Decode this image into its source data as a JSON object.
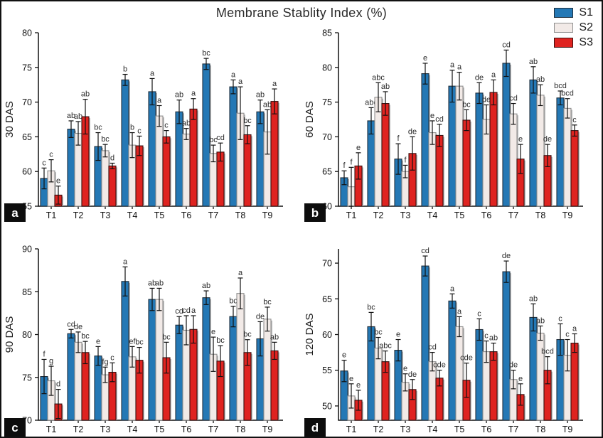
{
  "title": "Membrane Stablity Index (%)",
  "legend": {
    "position": "top-right",
    "entries": [
      {
        "label": "S1",
        "color": "#2478b5",
        "border": "#1f2f3d"
      },
      {
        "label": "S2",
        "color": "#f2eae7",
        "border": "#8f8f8f"
      },
      {
        "label": "S3",
        "color": "#df2320",
        "border": "#3a1110"
      }
    ]
  },
  "style_colors": {
    "axis": "#111111",
    "error_bar": "#111111",
    "letter_text": "#2b2b2b",
    "tick_label": "#111111"
  },
  "chart_data": [
    {
      "id": "a",
      "type": "bar",
      "panel_label": "a",
      "ylabel": "30 DAS",
      "xlabel": "",
      "ylim": [
        55,
        80
      ],
      "yticks": [
        55,
        60,
        65,
        70,
        75,
        80
      ],
      "grid": false,
      "categories": [
        "T1",
        "T2",
        "T3",
        "T4",
        "T5",
        "T6",
        "T7",
        "T8",
        "T9"
      ],
      "series": [
        {
          "name": "S1",
          "values": [
            59.0,
            66.1,
            63.6,
            73.2,
            71.5,
            68.6,
            75.5,
            72.2,
            68.6
          ],
          "errors": [
            1.5,
            1.2,
            2.0,
            0.8,
            1.9,
            1.7,
            0.8,
            1.0,
            1.7
          ],
          "letters": [
            "c",
            "ab",
            "bc",
            "b",
            "a",
            "ab",
            "bc",
            "a",
            "ab"
          ]
        },
        {
          "name": "S2",
          "values": [
            60.1,
            65.5,
            63.0,
            63.8,
            68.0,
            65.4,
            62.6,
            68.4,
            65.7
          ],
          "errors": [
            1.6,
            1.7,
            0.9,
            1.8,
            1.5,
            0.8,
            1.2,
            3.8,
            3.2
          ],
          "letters": [
            "c",
            "ab",
            "bc",
            "b",
            "a",
            "ab",
            "bc",
            "a",
            "ab"
          ]
        },
        {
          "name": "S3",
          "values": [
            56.6,
            67.9,
            60.8,
            63.7,
            65.0,
            69.0,
            62.8,
            65.3,
            70.1
          ],
          "errors": [
            1.3,
            2.5,
            0.4,
            1.4,
            0.9,
            1.5,
            1.3,
            1.3,
            1.8
          ],
          "letters": [
            "e",
            "ab",
            "d",
            "c",
            "c",
            "a",
            "cd",
            "bc",
            "a"
          ]
        }
      ]
    },
    {
      "id": "b",
      "type": "bar",
      "panel_label": "b",
      "ylabel": "60 DAS",
      "xlabel": "",
      "ylim": [
        60,
        85
      ],
      "yticks": [
        60,
        65,
        70,
        75,
        80,
        85
      ],
      "grid": false,
      "categories": [
        "T1",
        "T2",
        "T3",
        "T4",
        "T5",
        "T6",
        "T7",
        "T8",
        "T9"
      ],
      "series": [
        {
          "name": "S1",
          "values": [
            64.1,
            72.3,
            66.8,
            79.1,
            77.3,
            76.3,
            80.6,
            78.2,
            75.6
          ],
          "errors": [
            1.0,
            1.9,
            2.2,
            1.5,
            2.3,
            1.5,
            1.9,
            1.9,
            1.0
          ],
          "letters": [
            "f",
            "abc",
            "f",
            "e",
            "a",
            "de",
            "cd",
            "ab",
            "bcd"
          ]
        },
        {
          "name": "S2",
          "values": [
            62.8,
            75.7,
            65.0,
            70.6,
            77.3,
            72.5,
            73.3,
            76.0,
            74.1
          ],
          "errors": [
            2.8,
            2.1,
            0.9,
            1.7,
            2.0,
            2.1,
            1.5,
            1.5,
            1.4
          ],
          "letters": [
            "f",
            "abc",
            "f",
            "e",
            "a",
            "de",
            "cd",
            "ab",
            "bcd"
          ]
        },
        {
          "name": "S3",
          "values": [
            65.8,
            74.8,
            67.6,
            70.2,
            72.4,
            76.4,
            66.8,
            67.3,
            70.9
          ],
          "errors": [
            1.9,
            1.7,
            2.4,
            1.6,
            1.5,
            1.8,
            2.1,
            1.6,
            0.8
          ],
          "letters": [
            "e",
            "ab",
            "de",
            "cd",
            "bc",
            "a",
            "e",
            "de",
            "c"
          ]
        }
      ]
    },
    {
      "id": "c",
      "type": "bar",
      "panel_label": "c",
      "ylabel": "90 DAS",
      "xlabel": "",
      "ylim": [
        70,
        90
      ],
      "yticks": [
        70,
        75,
        80,
        85,
        90
      ],
      "grid": false,
      "categories": [
        "T1",
        "T2",
        "T3",
        "T4",
        "T5",
        "T6",
        "T7",
        "T8",
        "T9"
      ],
      "series": [
        {
          "name": "S1",
          "values": [
            75.1,
            80.1,
            77.5,
            86.2,
            84.1,
            81.1,
            84.3,
            82.1,
            79.5
          ],
          "errors": [
            2.0,
            0.5,
            1.1,
            1.7,
            1.3,
            1.0,
            0.8,
            1.2,
            2.0
          ],
          "letters": [
            "f",
            "cd",
            "e",
            "a",
            "ab",
            "cd",
            "ab",
            "bc",
            "de"
          ]
        },
        {
          "name": "S2",
          "values": [
            74.6,
            79.1,
            75.3,
            77.4,
            84.1,
            80.5,
            77.7,
            84.8,
            81.8
          ],
          "errors": [
            1.7,
            1.2,
            0.9,
            1.2,
            1.3,
            1.7,
            2.0,
            1.8,
            1.4
          ],
          "letters": [
            "g",
            "de",
            "fg",
            "ef",
            "ab",
            "cd",
            "e",
            "a",
            "bc"
          ]
        },
        {
          "name": "S3",
          "values": [
            71.9,
            77.9,
            75.6,
            77.0,
            77.3,
            80.6,
            76.9,
            77.9,
            78.1
          ],
          "errors": [
            1.7,
            1.3,
            1.1,
            1.5,
            1.8,
            1.6,
            1.8,
            1.5,
            1.0
          ],
          "letters": [
            "d",
            "bc",
            "c",
            "bc",
            "bc",
            "a",
            "bc",
            "bc",
            "ab"
          ]
        }
      ]
    },
    {
      "id": "d",
      "type": "bar",
      "panel_label": "d",
      "ylabel": "120 DAS",
      "xlabel": "",
      "ylim": [
        48,
        72
      ],
      "yticks": [
        50,
        55,
        60,
        65,
        70
      ],
      "grid": false,
      "categories": [
        "T1",
        "T2",
        "T3",
        "T4",
        "T5",
        "T6",
        "T7",
        "T8",
        "T9"
      ],
      "series": [
        {
          "name": "S1",
          "values": [
            54.9,
            61.1,
            57.8,
            69.6,
            64.7,
            60.7,
            68.8,
            62.4,
            59.3
          ],
          "errors": [
            1.5,
            2.0,
            1.5,
            1.4,
            1.0,
            1.5,
            1.5,
            1.9,
            2.2
          ],
          "letters": [
            "e",
            "bc",
            "e",
            "cd",
            "a",
            "c",
            "de",
            "ab",
            "c"
          ]
        },
        {
          "name": "S2",
          "values": [
            51.4,
            58.1,
            53.3,
            56.2,
            61.1,
            57.6,
            53.7,
            60.2,
            57.1
          ],
          "errors": [
            1.7,
            1.5,
            1.2,
            1.3,
            1.4,
            1.5,
            1.3,
            1.0,
            2.2
          ],
          "letters": [
            "e",
            "bc",
            "e",
            "cd",
            "a",
            "c",
            "de",
            "ab",
            "c"
          ]
        },
        {
          "name": "S3",
          "values": [
            50.8,
            56.2,
            52.3,
            53.9,
            53.6,
            57.6,
            51.6,
            55.0,
            58.8
          ],
          "errors": [
            1.4,
            1.5,
            1.4,
            1.1,
            2.4,
            1.2,
            1.5,
            1.9,
            1.3
          ],
          "letters": [
            "e",
            "abc",
            "de",
            "cde",
            "cde",
            "ab",
            "e",
            "bcd",
            "a"
          ]
        }
      ]
    }
  ]
}
